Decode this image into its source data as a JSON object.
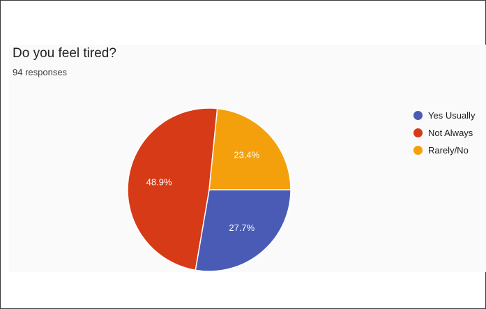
{
  "chart_data": {
    "type": "pie",
    "title": "Do you feel tired?",
    "subtitle": "94 responses",
    "slices": [
      {
        "label": "Yes Usually",
        "value": 27.7,
        "display": "27.7%",
        "color": "#4a5bb5"
      },
      {
        "label": "Not Always",
        "value": 48.9,
        "display": "48.9%",
        "color": "#d63a16"
      },
      {
        "label": "Rarely/No",
        "value": 23.4,
        "display": "23.4%",
        "color": "#f4a00c"
      }
    ],
    "legend_position": "right"
  }
}
